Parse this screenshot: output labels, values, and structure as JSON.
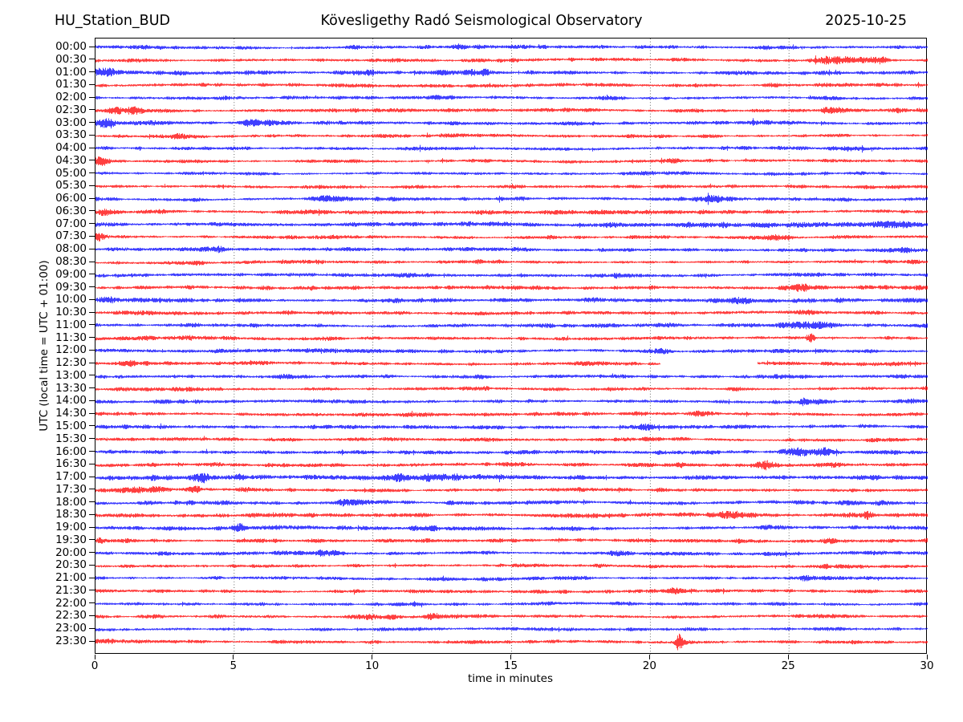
{
  "header": {
    "station": "HU_Station_BUD",
    "observatory": "Kövesligethy Radó Seismological Observatory",
    "date": "2025-10-25"
  },
  "chart_data": {
    "type": "line",
    "subtype": "helicorder-dayplot",
    "title": "HU_Station_BUD — Kövesligethy Radó Seismological Observatory — 2025-10-25",
    "xlabel": "time in minutes",
    "ylabel": "UTC (local time = UTC + 01:00)",
    "xlim": [
      0,
      30
    ],
    "x_ticks": [
      0,
      5,
      10,
      15,
      20,
      25,
      30
    ],
    "grid_minutes": [
      5,
      10,
      15,
      20,
      25
    ],
    "grid": true,
    "minutes_per_row": 30,
    "trace_colors": {
      "even_rows": "#0000ff",
      "odd_rows": "#ff0000"
    },
    "frame_color": "#000000",
    "rows": [
      {
        "label": "00:00",
        "color": "#0000ff",
        "base": 1.0,
        "events": [
          {
            "t": 13.2,
            "w": 0.4,
            "a": 0.6
          },
          {
            "t": 25.0,
            "w": 0.3,
            "a": 0.5
          }
        ]
      },
      {
        "label": "00:30",
        "color": "#ff0000",
        "base": 1.0,
        "events": [
          {
            "t": 21.3,
            "w": 0.5,
            "a": 0.8
          },
          {
            "t": 26.8,
            "w": 0.8,
            "a": 1.6
          },
          {
            "t": 28.2,
            "w": 0.35,
            "a": 2.6
          }
        ]
      },
      {
        "label": "01:00",
        "color": "#0000ff",
        "base": 1.1,
        "events": [
          {
            "t": 0.5,
            "w": 0.7,
            "a": 1.0
          },
          {
            "t": 9.8,
            "w": 0.3,
            "a": 0.8
          },
          {
            "t": 12.6,
            "w": 0.7,
            "a": 1.0
          },
          {
            "t": 13.8,
            "w": 0.4,
            "a": 0.9
          }
        ]
      },
      {
        "label": "01:30",
        "color": "#ff0000",
        "base": 0.95,
        "events": [
          {
            "t": 24.5,
            "w": 0.3,
            "a": 0.6
          }
        ]
      },
      {
        "label": "02:00",
        "color": "#0000ff",
        "base": 0.95,
        "events": [
          {
            "t": 12.3,
            "w": 0.6,
            "a": 0.7
          }
        ]
      },
      {
        "label": "02:30",
        "color": "#ff0000",
        "base": 1.1,
        "events": [
          {
            "t": 0.8,
            "w": 0.9,
            "a": 1.2
          },
          {
            "t": 26.5,
            "w": 0.5,
            "a": 0.8
          },
          {
            "t": 29.0,
            "w": 0.4,
            "a": 0.9
          }
        ]
      },
      {
        "label": "03:00",
        "color": "#0000ff",
        "base": 1.15,
        "events": [
          {
            "t": 0.4,
            "w": 0.5,
            "a": 1.2
          },
          {
            "t": 2.2,
            "w": 0.4,
            "a": 0.7
          },
          {
            "t": 5.8,
            "w": 0.6,
            "a": 1.4
          }
        ]
      },
      {
        "label": "03:30",
        "color": "#ff0000",
        "base": 0.95,
        "events": [
          {
            "t": 3.0,
            "w": 0.4,
            "a": 0.8
          },
          {
            "t": 20.5,
            "w": 0.3,
            "a": 0.6
          }
        ]
      },
      {
        "label": "04:00",
        "color": "#0000ff",
        "base": 0.95,
        "events": [
          {
            "t": 5.5,
            "w": 0.4,
            "a": 0.6
          },
          {
            "t": 27.2,
            "w": 0.9,
            "a": 1.3
          }
        ]
      },
      {
        "label": "04:30",
        "color": "#ff0000",
        "base": 0.95,
        "events": [
          {
            "t": 0.2,
            "w": 0.25,
            "a": 2.2
          },
          {
            "t": 20.8,
            "w": 0.3,
            "a": 0.7
          }
        ]
      },
      {
        "label": "05:00",
        "color": "#0000ff",
        "base": 0.95,
        "events": [
          {
            "t": 21.2,
            "w": 0.3,
            "a": 0.9
          }
        ]
      },
      {
        "label": "05:30",
        "color": "#ff0000",
        "base": 0.95,
        "events": []
      },
      {
        "label": "06:00",
        "color": "#0000ff",
        "base": 1.05,
        "events": [
          {
            "t": 8.3,
            "w": 0.3,
            "a": 0.6
          },
          {
            "t": 22.3,
            "w": 0.8,
            "a": 1.2
          }
        ]
      },
      {
        "label": "06:30",
        "color": "#ff0000",
        "base": 1.1,
        "events": [
          {
            "t": 0.3,
            "w": 0.3,
            "a": 0.8
          },
          {
            "t": 14.2,
            "w": 0.5,
            "a": 1.1
          }
        ]
      },
      {
        "label": "07:00",
        "color": "#0000ff",
        "base": 1.15,
        "events": [
          {
            "t": 22.5,
            "w": 1.2,
            "a": 0.9
          },
          {
            "t": 26.0,
            "w": 2.0,
            "a": 0.8
          },
          {
            "t": 28.7,
            "w": 0.9,
            "a": 1.2
          }
        ]
      },
      {
        "label": "07:30",
        "color": "#ff0000",
        "base": 1.0,
        "events": [
          {
            "t": 0.2,
            "w": 0.2,
            "a": 2.0
          },
          {
            "t": 24.8,
            "w": 0.4,
            "a": 0.9
          },
          {
            "t": 27.6,
            "w": 0.3,
            "a": 0.9
          }
        ]
      },
      {
        "label": "08:00",
        "color": "#0000ff",
        "base": 1.0,
        "events": [
          {
            "t": 4.5,
            "w": 0.5,
            "a": 0.6
          },
          {
            "t": 11.5,
            "w": 0.4,
            "a": 0.5
          },
          {
            "t": 29.2,
            "w": 0.3,
            "a": 0.6
          }
        ]
      },
      {
        "label": "08:30",
        "color": "#ff0000",
        "base": 1.05,
        "events": []
      },
      {
        "label": "09:00",
        "color": "#0000ff",
        "base": 1.05,
        "events": [
          {
            "t": 11.2,
            "w": 0.4,
            "a": 0.5
          },
          {
            "t": 18.9,
            "w": 0.3,
            "a": 0.5
          }
        ]
      },
      {
        "label": "09:30",
        "color": "#ff0000",
        "base": 1.1,
        "events": [
          {
            "t": 25.5,
            "w": 0.6,
            "a": 0.7
          },
          {
            "t": 28.0,
            "w": 0.5,
            "a": 0.8
          },
          {
            "t": 29.5,
            "w": 0.3,
            "a": 0.9
          }
        ]
      },
      {
        "label": "10:00",
        "color": "#0000ff",
        "base": 1.15,
        "events": [
          {
            "t": 0.5,
            "w": 0.6,
            "a": 0.7
          },
          {
            "t": 23.2,
            "w": 0.4,
            "a": 0.6
          }
        ]
      },
      {
        "label": "10:30",
        "color": "#ff0000",
        "base": 1.05,
        "events": [
          {
            "t": 1.5,
            "w": 0.4,
            "a": 0.6
          },
          {
            "t": 25.3,
            "w": 0.4,
            "a": 0.8
          }
        ]
      },
      {
        "label": "11:00",
        "color": "#0000ff",
        "base": 1.1,
        "events": [
          {
            "t": 25.2,
            "w": 0.7,
            "a": 2.2
          },
          {
            "t": 26.2,
            "w": 0.4,
            "a": 1.2
          }
        ]
      },
      {
        "label": "11:30",
        "color": "#ff0000",
        "base": 1.05,
        "events": [
          {
            "t": 3.5,
            "w": 0.4,
            "a": 0.5
          },
          {
            "t": 25.8,
            "w": 0.15,
            "a": 2.2
          }
        ]
      },
      {
        "label": "12:00",
        "color": "#0000ff",
        "base": 1.1,
        "events": [
          {
            "t": 20.5,
            "w": 0.6,
            "a": 1.0
          },
          {
            "t": 27.5,
            "w": 0.5,
            "a": 0.7
          }
        ]
      },
      {
        "label": "12:30",
        "color": "#ff0000",
        "base": 1.05,
        "events": [
          {
            "t": 1.2,
            "w": 0.5,
            "a": 0.6
          },
          {
            "t": 19.2,
            "w": 0.4,
            "a": 0.6
          }
        ],
        "gaps": [
          [
            20.35,
            23.85
          ]
        ]
      },
      {
        "label": "13:00",
        "color": "#0000ff",
        "base": 1.05,
        "events": [
          {
            "t": 6.8,
            "w": 0.4,
            "a": 0.5
          }
        ]
      },
      {
        "label": "13:30",
        "color": "#ff0000",
        "base": 1.0,
        "events": [
          {
            "t": 27.9,
            "w": 0.3,
            "a": 0.6
          }
        ]
      },
      {
        "label": "14:00",
        "color": "#0000ff",
        "base": 1.05,
        "events": [
          {
            "t": 25.7,
            "w": 0.4,
            "a": 0.8
          },
          {
            "t": 29.3,
            "w": 0.3,
            "a": 0.7
          }
        ]
      },
      {
        "label": "14:30",
        "color": "#ff0000",
        "base": 1.0,
        "events": [
          {
            "t": 21.8,
            "w": 0.3,
            "a": 0.9
          }
        ]
      },
      {
        "label": "15:00",
        "color": "#0000ff",
        "base": 1.05,
        "events": [
          {
            "t": 19.7,
            "w": 0.4,
            "a": 1.1
          }
        ]
      },
      {
        "label": "15:30",
        "color": "#ff0000",
        "base": 1.0,
        "events": [
          {
            "t": 6.5,
            "w": 0.3,
            "a": 0.5
          }
        ]
      },
      {
        "label": "16:00",
        "color": "#0000ff",
        "base": 1.1,
        "events": [
          {
            "t": 25.3,
            "w": 0.6,
            "a": 1.2
          },
          {
            "t": 26.4,
            "w": 0.3,
            "a": 1.0
          }
        ]
      },
      {
        "label": "16:30",
        "color": "#ff0000",
        "base": 1.05,
        "events": [
          {
            "t": 21.2,
            "w": 0.3,
            "a": 0.7
          },
          {
            "t": 24.2,
            "w": 0.4,
            "a": 1.1
          },
          {
            "t": 26.6,
            "w": 0.3,
            "a": 0.8
          }
        ]
      },
      {
        "label": "17:00",
        "color": "#0000ff",
        "base": 1.35,
        "events": [
          {
            "t": 3.7,
            "w": 0.5,
            "a": 1.3
          },
          {
            "t": 5.2,
            "w": 0.3,
            "a": 1.0
          },
          {
            "t": 11.0,
            "w": 0.3,
            "a": 0.8
          },
          {
            "t": 12.5,
            "w": 0.8,
            "a": 1.1
          }
        ]
      },
      {
        "label": "17:30",
        "color": "#ff0000",
        "base": 1.1,
        "events": [
          {
            "t": 1.8,
            "w": 0.8,
            "a": 1.3
          },
          {
            "t": 3.6,
            "w": 0.3,
            "a": 0.9
          },
          {
            "t": 27.0,
            "w": 0.4,
            "a": 0.6
          }
        ]
      },
      {
        "label": "18:00",
        "color": "#0000ff",
        "base": 1.15,
        "events": [
          {
            "t": 9.0,
            "w": 0.4,
            "a": 0.5
          },
          {
            "t": 28.5,
            "w": 0.4,
            "a": 0.6
          }
        ]
      },
      {
        "label": "18:30",
        "color": "#ff0000",
        "base": 1.05,
        "events": [
          {
            "t": 22.8,
            "w": 0.7,
            "a": 0.8
          },
          {
            "t": 27.1,
            "w": 0.3,
            "a": 1.0
          },
          {
            "t": 27.8,
            "w": 0.25,
            "a": 2.2
          }
        ]
      },
      {
        "label": "19:00",
        "color": "#0000ff",
        "base": 1.1,
        "events": [
          {
            "t": 5.2,
            "w": 0.25,
            "a": 1.4
          },
          {
            "t": 12.0,
            "w": 0.4,
            "a": 0.6
          }
        ]
      },
      {
        "label": "19:30",
        "color": "#ff0000",
        "base": 1.0,
        "events": [
          {
            "t": 0.15,
            "w": 0.15,
            "a": 1.5
          },
          {
            "t": 22.0,
            "w": 0.5,
            "a": 0.7
          },
          {
            "t": 23.5,
            "w": 0.4,
            "a": 0.8
          },
          {
            "t": 26.5,
            "w": 0.3,
            "a": 0.6
          }
        ]
      },
      {
        "label": "20:00",
        "color": "#0000ff",
        "base": 1.0,
        "events": [
          {
            "t": 8.5,
            "w": 0.5,
            "a": 1.4
          },
          {
            "t": 18.7,
            "w": 0.3,
            "a": 0.6
          }
        ]
      },
      {
        "label": "20:30",
        "color": "#ff0000",
        "base": 0.95,
        "events": [
          {
            "t": 26.4,
            "w": 0.3,
            "a": 0.5
          }
        ]
      },
      {
        "label": "21:00",
        "color": "#0000ff",
        "base": 0.95,
        "events": [
          {
            "t": 4.2,
            "w": 0.4,
            "a": 0.6
          },
          {
            "t": 25.6,
            "w": 0.4,
            "a": 0.7
          }
        ]
      },
      {
        "label": "21:30",
        "color": "#ff0000",
        "base": 0.95,
        "events": [
          {
            "t": 20.8,
            "w": 0.5,
            "a": 0.7
          }
        ]
      },
      {
        "label": "22:00",
        "color": "#0000ff",
        "base": 0.95,
        "events": [
          {
            "t": 5.0,
            "w": 0.4,
            "a": 0.7
          },
          {
            "t": 24.6,
            "w": 0.4,
            "a": 0.9
          }
        ]
      },
      {
        "label": "22:30",
        "color": "#ff0000",
        "base": 1.0,
        "events": [
          {
            "t": 2.2,
            "w": 0.5,
            "a": 0.6
          },
          {
            "t": 9.7,
            "w": 0.7,
            "a": 1.2
          },
          {
            "t": 12.2,
            "w": 0.4,
            "a": 1.0
          }
        ]
      },
      {
        "label": "23:00",
        "color": "#0000ff",
        "base": 0.9,
        "events": [
          {
            "t": 17.5,
            "w": 0.4,
            "a": 0.5
          }
        ]
      },
      {
        "label": "23:30",
        "color": "#ff0000",
        "base": 0.95,
        "events": [
          {
            "t": 0.5,
            "w": 0.4,
            "a": 0.8
          },
          {
            "t": 2.5,
            "w": 0.3,
            "a": 0.5
          },
          {
            "t": 21.0,
            "w": 0.12,
            "a": 4.2
          },
          {
            "t": 21.45,
            "w": 0.45,
            "a": 1.6
          }
        ]
      }
    ]
  }
}
